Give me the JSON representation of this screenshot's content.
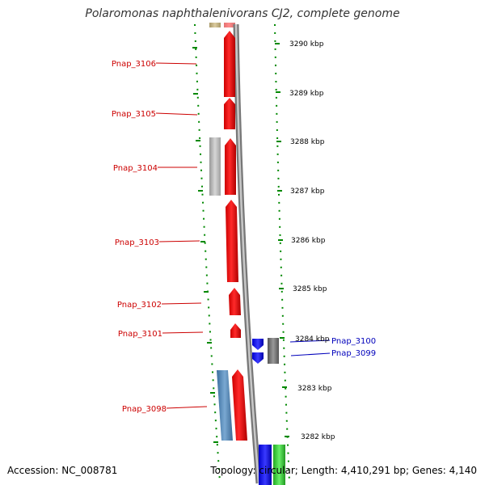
{
  "title": "Polaromonas naphthalenivorans CJ2, complete genome",
  "accession": "Accession: NC_008781",
  "topology": "Topology: circular; Length: 4,410,291 bp; Genes: 4,140",
  "colors": {
    "left_label": "#cc0000",
    "right_label": "#0000bb",
    "ticks": "#007700",
    "forward_gene": "#ff0000",
    "reverse_gene": "#0000ff",
    "grey_gene": "#bbbbbb",
    "steelblue_gene": "#4f86b8",
    "green_gene": "#33cc33",
    "khaki_gene": "#c8b888",
    "dark_grey_gene": "#777777",
    "backbone": "#888888"
  },
  "kbp_marks": [
    "3290 kbp",
    "3289 kbp",
    "3288 kbp",
    "3287 kbp",
    "3286 kbp",
    "3285 kbp",
    "3284 kbp",
    "3283 kbp",
    "3282 kbp"
  ],
  "left_labels": [
    "Pnap_3106",
    "Pnap_3105",
    "Pnap_3104",
    "Pnap_3103",
    "Pnap_3102",
    "Pnap_3101",
    "Pnap_3098"
  ],
  "right_labels": [
    "Pnap_3100",
    "Pnap_3099"
  ]
}
